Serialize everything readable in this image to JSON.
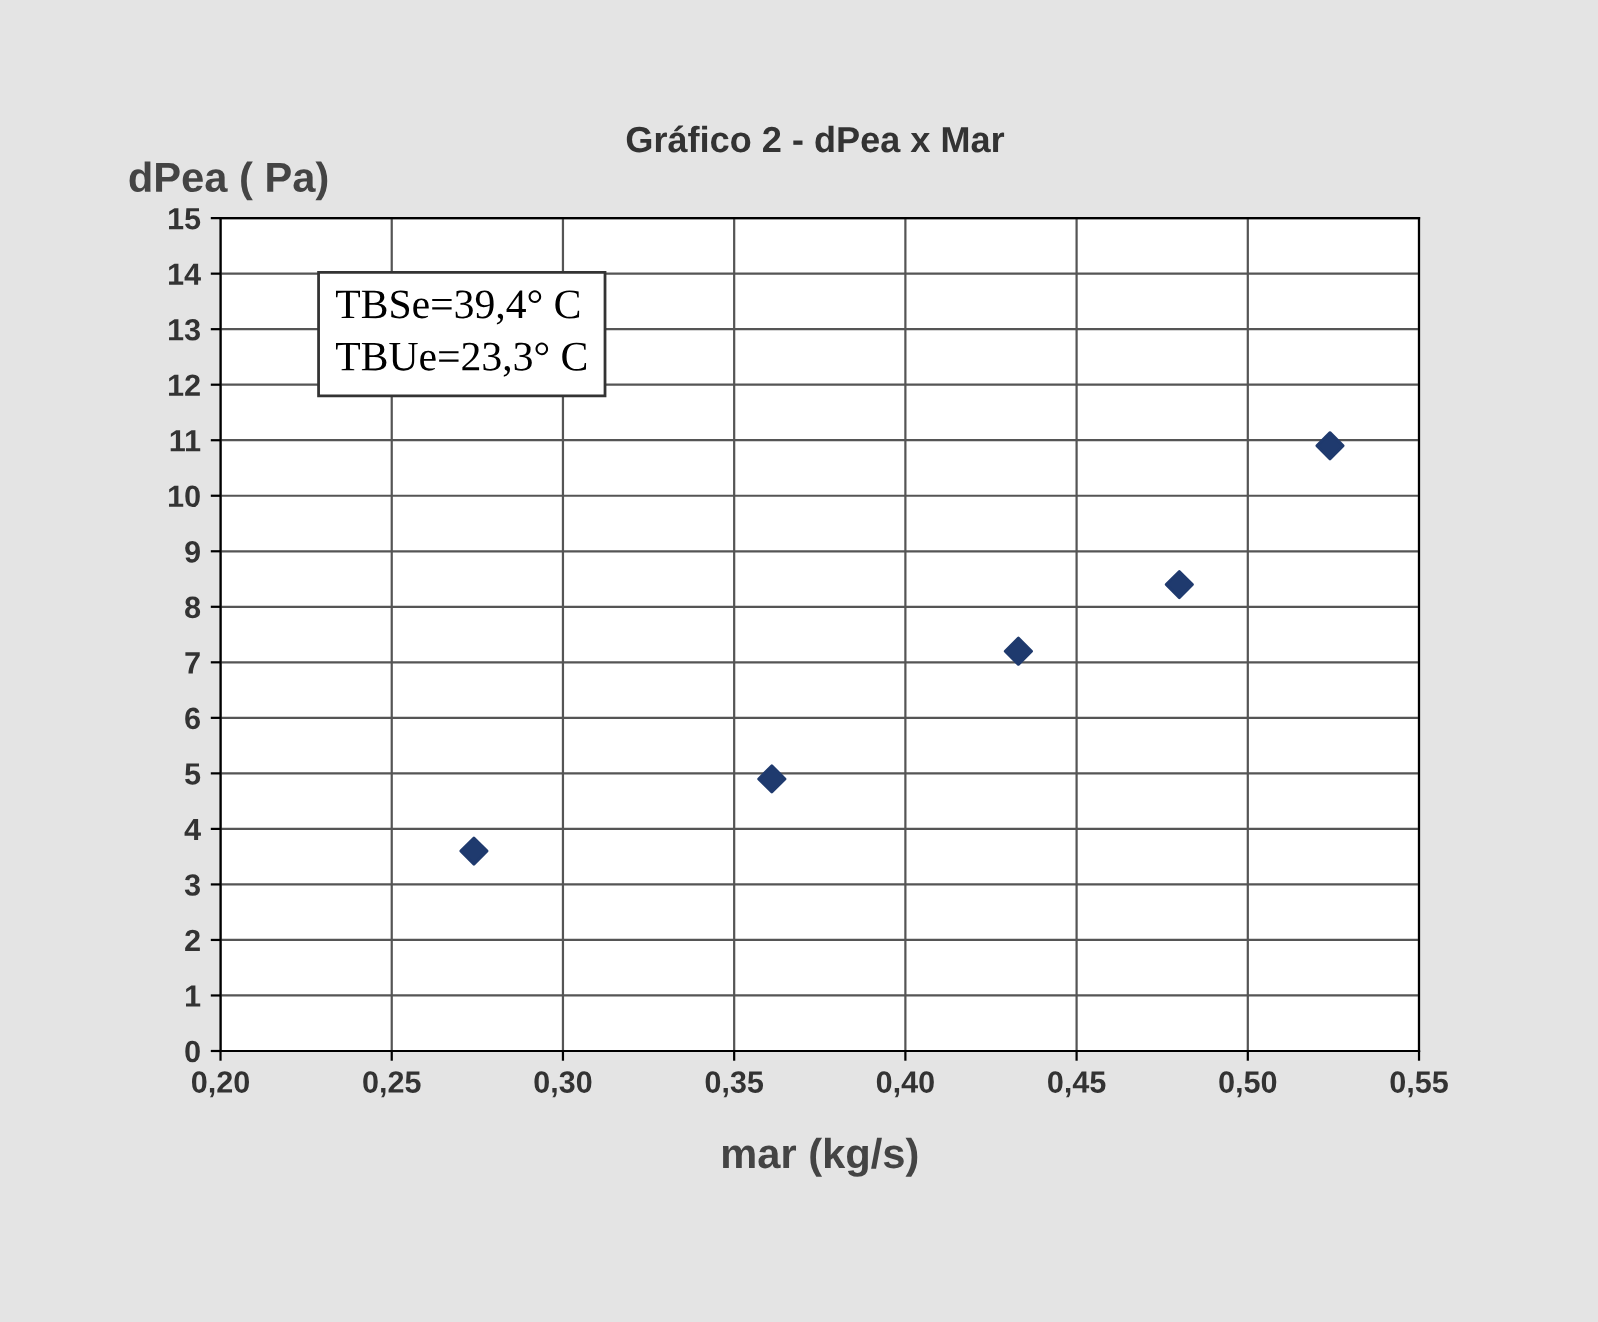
{
  "chart_data": {
    "type": "scatter",
    "title": "Gráfico 2 - dPea x Mar",
    "xlabel": "mar (kg/s)",
    "ylabel": "dPea ( Pa)",
    "x": [
      0.274,
      0.361,
      0.433,
      0.48,
      0.524
    ],
    "series": [
      {
        "color": "#1f3a6e",
        "values": [
          3.6,
          4.9,
          7.2,
          8.4,
          10.9
        ]
      }
    ],
    "xlim": [
      0.2,
      0.55
    ],
    "xticks": [
      {
        "value": 0.2,
        "label": "0,20"
      },
      {
        "value": 0.25,
        "label": "0,25"
      },
      {
        "value": 0.3,
        "label": "0,30"
      },
      {
        "value": 0.35,
        "label": "0,35"
      },
      {
        "value": 0.4,
        "label": "0,40"
      },
      {
        "value": 0.45,
        "label": "0,45"
      },
      {
        "value": 0.5,
        "label": "0,50"
      },
      {
        "value": 0.55,
        "label": "0,55"
      }
    ],
    "ylim": [
      0,
      15
    ],
    "yticks": [
      0,
      1,
      2,
      3,
      4,
      5,
      6,
      7,
      8,
      9,
      10,
      11,
      12,
      13,
      14,
      15
    ],
    "grid": true,
    "legend": false,
    "marker": "diamond",
    "annotations": [
      "TBSe=39,4° C\nTBUe=23,3° C"
    ]
  }
}
